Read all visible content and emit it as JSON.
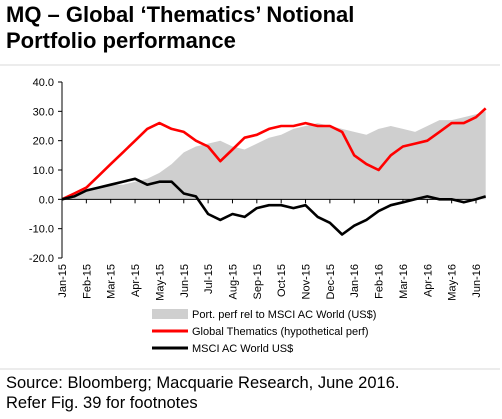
{
  "title": {
    "line1": "MQ – Global ‘Thematics’ Notional",
    "line2": "Portfolio performance"
  },
  "source": {
    "line1": "Source: Bloomberg; Macquarie Research, June 2016.",
    "line2": "Refer Fig. 39 for footnotes"
  },
  "colors": {
    "area": "#cfcfcf",
    "thematics": "#ff0000",
    "msci": "#000000"
  },
  "chart_data": {
    "type": "line",
    "title": "",
    "xlabel": "",
    "ylabel": "",
    "ylim": [
      -20,
      40
    ],
    "yticks": [
      -20,
      -10,
      0,
      10,
      20,
      30,
      40
    ],
    "ytick_labels": [
      "-20.0",
      "-10.0",
      "0.0",
      "10.0",
      "20.0",
      "30.0",
      "40.0"
    ],
    "x_categories": [
      "Jan-15",
      "Feb-15",
      "Mar-15",
      "Apr-15",
      "May-15",
      "Jun-15",
      "Jul-15",
      "Aug-15",
      "Sep-15",
      "Oct-15",
      "Nov-15",
      "Dec-15",
      "Jan-16",
      "Feb-16",
      "Mar-16",
      "Apr-16",
      "May-16",
      "Jun-16"
    ],
    "grid": false,
    "legend_position": "bottom",
    "x": [
      0,
      0.5,
      1,
      1.5,
      2,
      2.5,
      3,
      3.5,
      4,
      4.5,
      5,
      5.5,
      6,
      6.5,
      7,
      7.5,
      8,
      8.5,
      9,
      9.5,
      10,
      10.5,
      11,
      11.5,
      12,
      12.5,
      13,
      13.5,
      14,
      14.5,
      15,
      15.5,
      16,
      16.5,
      17,
      17.4
    ],
    "series": [
      {
        "name": "Port. perf rel to MSCI AC World (US$)",
        "style": "area",
        "values": [
          0,
          1,
          3,
          4,
          5,
          5,
          6,
          7,
          9,
          12,
          16,
          18,
          19,
          20,
          18,
          17,
          19,
          21,
          22,
          24,
          25,
          26,
          25,
          24,
          23,
          22,
          24,
          25,
          24,
          23,
          25,
          27,
          27,
          28,
          29,
          30
        ]
      },
      {
        "name": "Global Thematics  (hypothetical perf)",
        "style": "line",
        "values": [
          0,
          2,
          4,
          8,
          12,
          16,
          20,
          24,
          26,
          24,
          23,
          20,
          18,
          13,
          17,
          21,
          22,
          24,
          25,
          25,
          26,
          25,
          25,
          23,
          15,
          12,
          10,
          15,
          18,
          19,
          20,
          23,
          26,
          26,
          28,
          31
        ]
      },
      {
        "name": "MSCI AC World US$",
        "style": "line",
        "values": [
          0,
          1,
          3,
          4,
          5,
          6,
          7,
          5,
          6,
          6,
          2,
          1,
          -5,
          -7,
          -5,
          -6,
          -3,
          -2,
          -2,
          -3,
          -2,
          -6,
          -8,
          -12,
          -9,
          -7,
          -4,
          -2,
          -1,
          0,
          1,
          0,
          0,
          -1,
          0,
          1
        ]
      }
    ]
  }
}
